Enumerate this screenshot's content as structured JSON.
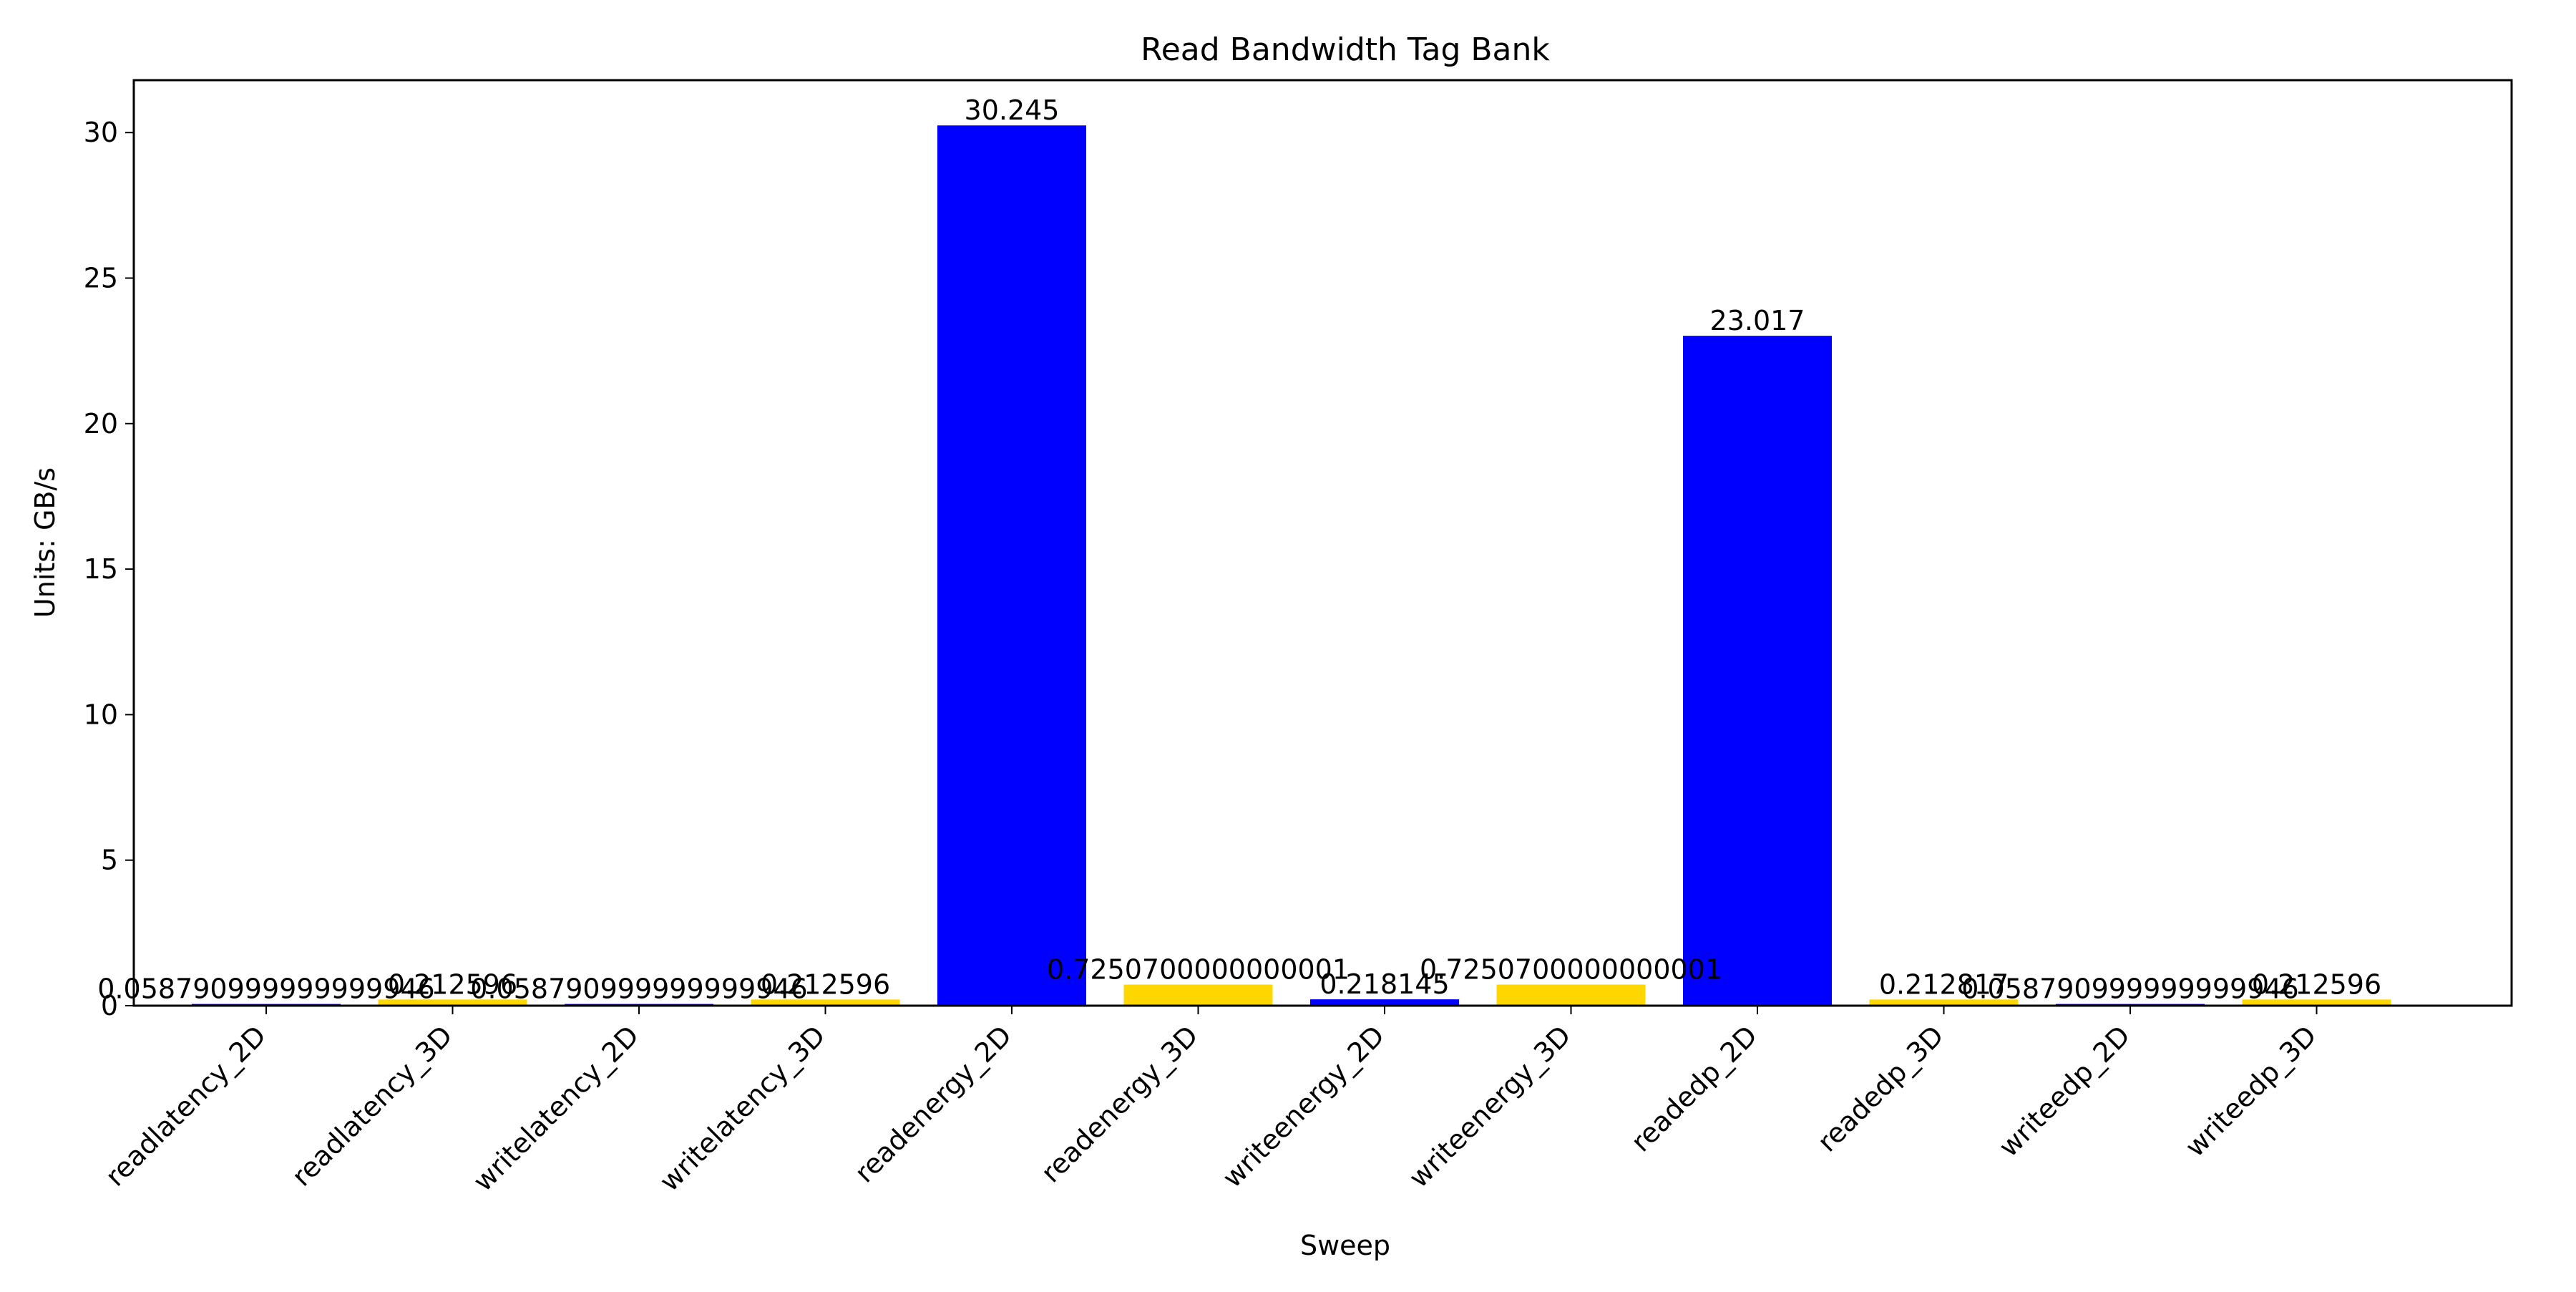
{
  "chart_data": {
    "type": "bar",
    "title": "Read Bandwidth Tag Bank",
    "xlabel": "Sweep",
    "ylabel": "Units: GB/s",
    "ylim": [
      0,
      31.8
    ],
    "yticks": [
      0,
      5,
      10,
      15,
      20,
      25,
      30
    ],
    "grid": false,
    "categories": [
      "readlatency_2D",
      "readlatency_3D",
      "writelatency_2D",
      "writelatency_3D",
      "readenergy_2D",
      "readenergy_3D",
      "writeenergy_2D",
      "writeenergy_3D",
      "readedp_2D",
      "readedp_3D",
      "writeedp_2D",
      "writeedp_3D"
    ],
    "values": [
      0.05879099999999995,
      0.212596,
      0.05879099999999995,
      0.212596,
      30.245,
      0.725070000000001,
      0.218145,
      0.725070000000001,
      23.017,
      0.212817,
      0.05879099999999995,
      0.212596
    ],
    "value_labels": [
      "0.058790999999999946",
      "0.212596",
      "0.058790999999999946",
      "0.212596",
      "30.245",
      "0.7250700000000001",
      "0.218145",
      "0.7250700000000001",
      "23.017",
      "0.212817",
      "0.058790999999999946",
      "0.212596"
    ],
    "bar_colors": [
      "#0000ff",
      "#ffd700",
      "#0000ff",
      "#ffd700",
      "#0000ff",
      "#ffd700",
      "#0000ff",
      "#ffd700",
      "#0000ff",
      "#ffd700",
      "#0000ff",
      "#ffd700"
    ]
  }
}
